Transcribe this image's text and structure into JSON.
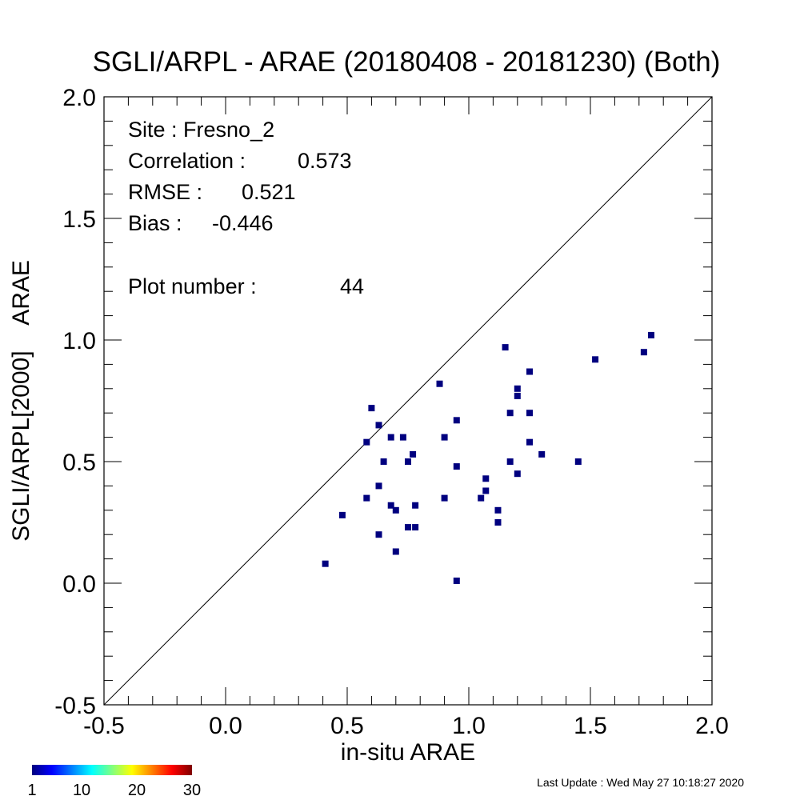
{
  "chart_data": {
    "type": "scatter",
    "title": "SGLI/ARPL - ARAE (20180408 - 20181230) (Both)",
    "xlabel": "in-situ ARAE",
    "ylabel": "SGLI/ARPL[2000]    ARAE",
    "xlim": [
      -0.5,
      2.0
    ],
    "ylim": [
      -0.5,
      2.0
    ],
    "x_ticks": [
      "-0.5",
      "0.0",
      "0.5",
      "1.0",
      "1.5",
      "2.0"
    ],
    "y_ticks": [
      "-0.5",
      "0.0",
      "0.5",
      "1.0",
      "1.5",
      "2.0"
    ],
    "x_tick_values": [
      -0.5,
      0.0,
      0.5,
      1.0,
      1.5,
      2.0
    ],
    "y_tick_values": [
      -0.5,
      0.0,
      0.5,
      1.0,
      1.5,
      2.0
    ],
    "grid": false,
    "reference_line": "1:1",
    "marker_color": "#00007f",
    "points": [
      {
        "x": 0.41,
        "y": 0.08
      },
      {
        "x": 0.48,
        "y": 0.28
      },
      {
        "x": 0.58,
        "y": 0.58
      },
      {
        "x": 0.58,
        "y": 0.35
      },
      {
        "x": 0.6,
        "y": 0.72
      },
      {
        "x": 0.63,
        "y": 0.65
      },
      {
        "x": 0.63,
        "y": 0.4
      },
      {
        "x": 0.63,
        "y": 0.2
      },
      {
        "x": 0.65,
        "y": 0.5
      },
      {
        "x": 0.68,
        "y": 0.6
      },
      {
        "x": 0.68,
        "y": 0.32
      },
      {
        "x": 0.7,
        "y": 0.3
      },
      {
        "x": 0.7,
        "y": 0.13
      },
      {
        "x": 0.73,
        "y": 0.6
      },
      {
        "x": 0.75,
        "y": 0.5
      },
      {
        "x": 0.75,
        "y": 0.23
      },
      {
        "x": 0.77,
        "y": 0.53
      },
      {
        "x": 0.78,
        "y": 0.32
      },
      {
        "x": 0.78,
        "y": 0.23
      },
      {
        "x": 0.88,
        "y": 0.82
      },
      {
        "x": 0.9,
        "y": 0.6
      },
      {
        "x": 0.9,
        "y": 0.35
      },
      {
        "x": 0.95,
        "y": 0.67
      },
      {
        "x": 0.95,
        "y": 0.48
      },
      {
        "x": 0.95,
        "y": 0.01
      },
      {
        "x": 1.05,
        "y": 0.35
      },
      {
        "x": 1.07,
        "y": 0.43
      },
      {
        "x": 1.07,
        "y": 0.38
      },
      {
        "x": 1.12,
        "y": 0.3
      },
      {
        "x": 1.12,
        "y": 0.25
      },
      {
        "x": 1.15,
        "y": 0.97
      },
      {
        "x": 1.17,
        "y": 0.7
      },
      {
        "x": 1.17,
        "y": 0.5
      },
      {
        "x": 1.2,
        "y": 0.8
      },
      {
        "x": 1.2,
        "y": 0.77
      },
      {
        "x": 1.2,
        "y": 0.45
      },
      {
        "x": 1.25,
        "y": 0.87
      },
      {
        "x": 1.25,
        "y": 0.7
      },
      {
        "x": 1.25,
        "y": 0.58
      },
      {
        "x": 1.3,
        "y": 0.53
      },
      {
        "x": 1.45,
        "y": 0.5
      },
      {
        "x": 1.52,
        "y": 0.92
      },
      {
        "x": 1.72,
        "y": 0.95
      },
      {
        "x": 1.75,
        "y": 1.02
      }
    ],
    "annotations": {
      "site": "Site : Fresno_2",
      "correlation_label": "Correlation :",
      "correlation": "0.573",
      "rmse_label": "RMSE :",
      "rmse": "0.521",
      "bias_label": "Bias :",
      "bias": "-0.446",
      "plot_number_label": "Plot number :",
      "plot_number": "44"
    },
    "colorbar": {
      "labels": [
        "1",
        "10",
        "20",
        "30"
      ],
      "values": [
        1,
        10,
        20,
        30
      ],
      "range": [
        1,
        30
      ],
      "colormap": [
        "#00007f",
        "#0000ff",
        "#0080ff",
        "#00ffff",
        "#80ff80",
        "#ffff00",
        "#ff8000",
        "#ff0000",
        "#7f0000"
      ]
    }
  },
  "footer": {
    "last_update": "Last Update : Wed May 27 10:18:27 2020"
  }
}
